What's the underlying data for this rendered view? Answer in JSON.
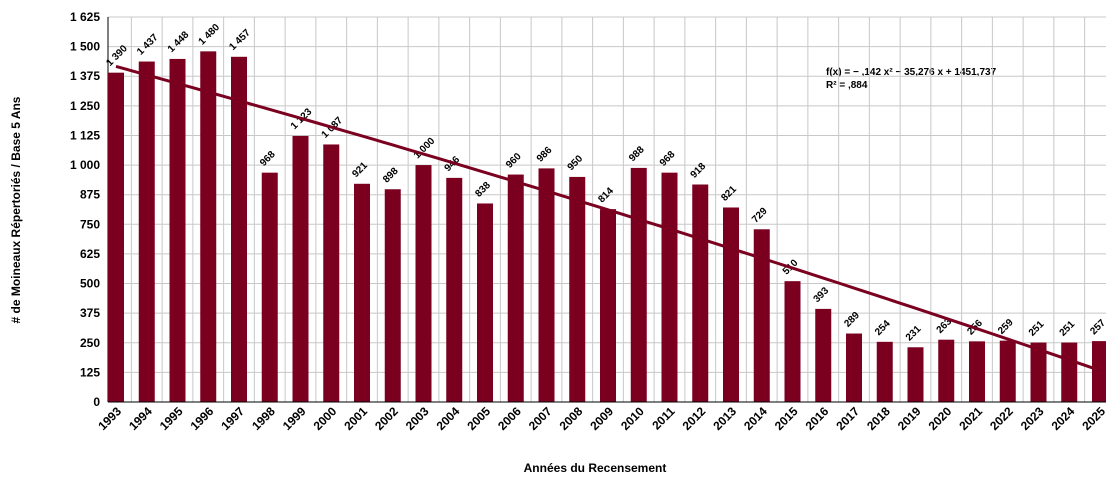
{
  "chart_data": {
    "type": "bar",
    "x_label": "Années du Recensement",
    "y_label": "# de Moineaux Répertoriés / Base 5 Ans",
    "categories": [
      "1993",
      "1994",
      "1995",
      "1996",
      "1997",
      "1998",
      "1999",
      "2000",
      "2001",
      "2002",
      "2003",
      "2004",
      "2005",
      "2006",
      "2007",
      "2008",
      "2009",
      "2010",
      "2011",
      "2012",
      "2013",
      "2014",
      "2015",
      "2016",
      "2017",
      "2018",
      "2019",
      "2020",
      "2021",
      "2022",
      "2023",
      "2024",
      "2025"
    ],
    "values": [
      1390,
      1437,
      1448,
      1480,
      1457,
      968,
      1123,
      1087,
      921,
      898,
      1000,
      946,
      838,
      960,
      986,
      950,
      814,
      988,
      968,
      918,
      821,
      729,
      510,
      393,
      289,
      254,
      231,
      263,
      256,
      259,
      251,
      251,
      257
    ],
    "value_labels": [
      "1 390",
      "1 437",
      "1 448",
      "1 480",
      "1 457",
      "968",
      "1 123",
      "1 087",
      "921",
      "898",
      "1 000",
      "946",
      "838",
      "960",
      "986",
      "950",
      "814",
      "988",
      "968",
      "918",
      "821",
      "729",
      "510",
      "393",
      "289",
      "254",
      "231",
      "263",
      "256",
      "259",
      "251",
      "251",
      "257"
    ],
    "color": "#7b0020",
    "ylim": [
      0,
      1625
    ],
    "yticks": [
      0,
      125,
      250,
      375,
      500,
      625,
      750,
      875,
      {
        "value": 1000,
        "label": "1 000"
      },
      {
        "value": 1125,
        "label": "1 125"
      },
      {
        "value": 1250,
        "label": "1 250"
      },
      {
        "value": 1375,
        "label": "1 375"
      },
      {
        "value": 1500,
        "label": "1 500"
      },
      {
        "value": 1625,
        "label": "1 625"
      }
    ],
    "grid": true,
    "trendline": {
      "equation": "f(x) = − ,142 x² − 35,276 x + 1451,737",
      "r2": "R² = ,884",
      "coefficients": [
        -0.142,
        -35.276,
        1451.737
      ],
      "color": "#7b0020"
    }
  }
}
